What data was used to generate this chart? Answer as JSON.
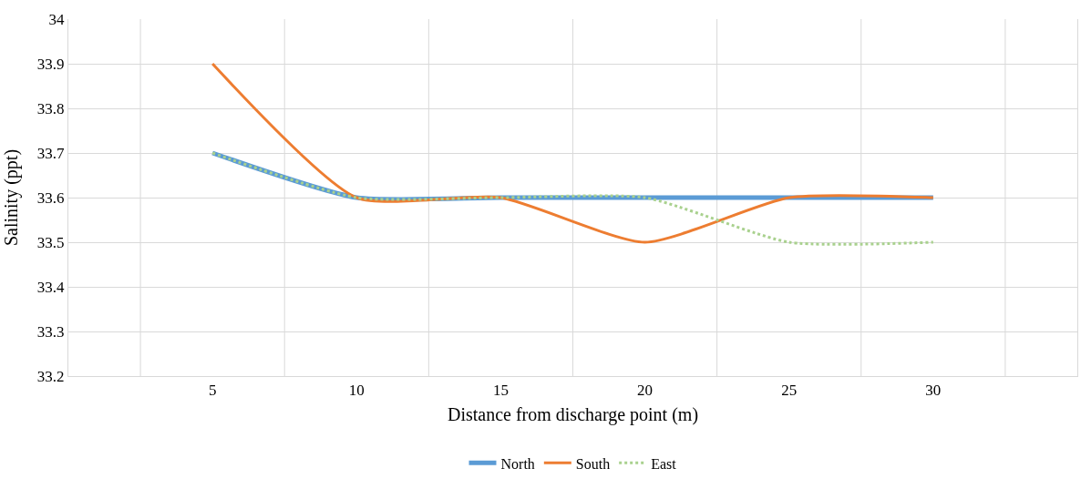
{
  "chart_data": {
    "type": "line",
    "xlabel": "Distance from discharge point (m)",
    "ylabel": "Salinity (ppt)",
    "categories": [
      "5",
      "10",
      "15",
      "20",
      "25",
      "30"
    ],
    "series": [
      {
        "name": "North",
        "color": "#5b9bd5",
        "values": [
          33.7,
          33.6,
          33.6,
          33.6,
          33.6,
          33.6
        ]
      },
      {
        "name": "South",
        "color": "#ed7d31",
        "values": [
          33.9,
          33.6,
          33.6,
          33.5,
          33.6,
          33.6
        ]
      },
      {
        "name": "East",
        "color": "#a9d18e",
        "values": [
          33.7,
          33.6,
          33.6,
          33.6,
          33.5,
          33.5
        ],
        "line_style": "dotted"
      }
    ],
    "ylim": [
      33.2,
      34
    ],
    "yticks": [
      {
        "value": 33.2,
        "label": "33.2"
      },
      {
        "value": 33.3,
        "label": "33.3"
      },
      {
        "value": 33.4,
        "label": "33.4"
      },
      {
        "value": 33.5,
        "label": "33.5"
      },
      {
        "value": 33.6,
        "label": "33.6"
      },
      {
        "value": 33.7,
        "label": "33.7"
      },
      {
        "value": 33.8,
        "label": "33.8"
      },
      {
        "value": 33.9,
        "label": "33.9"
      },
      {
        "value": 34,
        "label": "34"
      }
    ],
    "grid": true,
    "legend": "bottom",
    "marker": "none"
  }
}
